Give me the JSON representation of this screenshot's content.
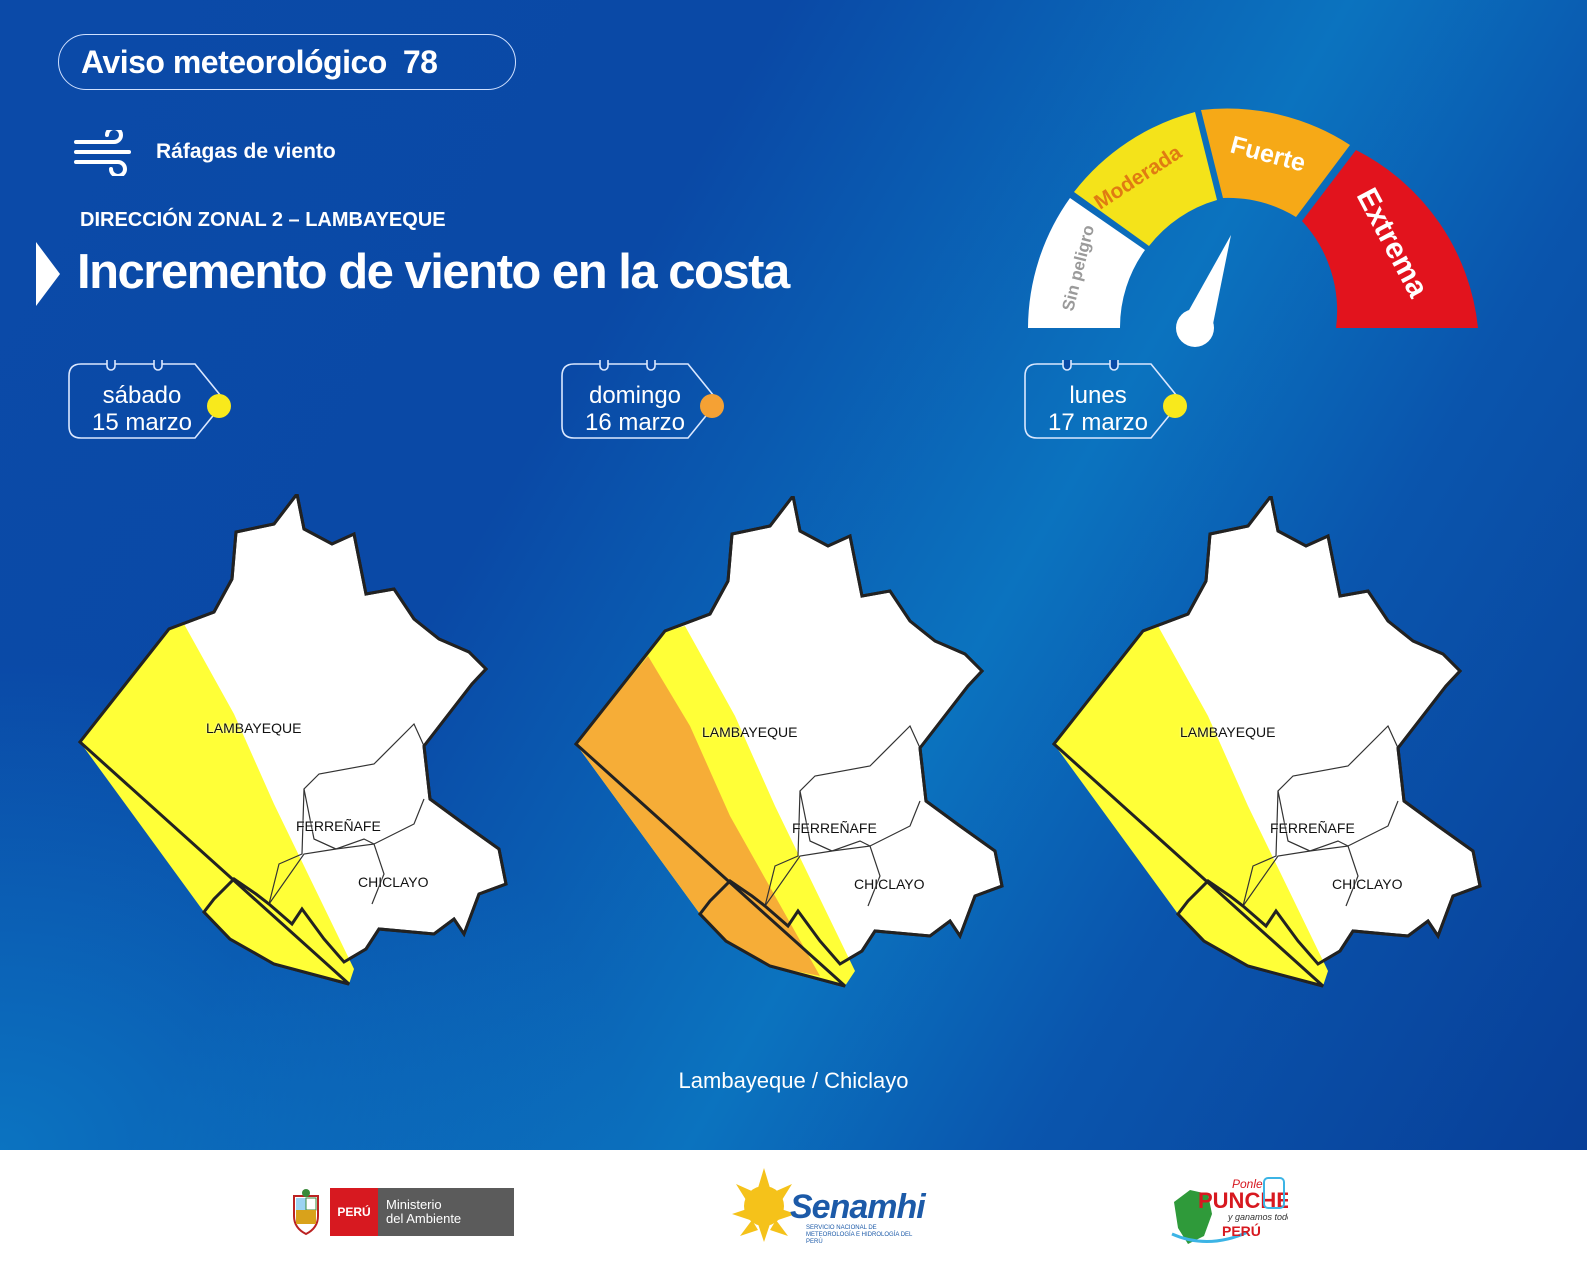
{
  "header": {
    "badge_title": "Aviso meteorológico",
    "badge_number": "78",
    "hazard": "Ráfagas de viento",
    "zone": "DIRECCIÓN ZONAL 2 – LAMBAYEQUE",
    "headline": "Incremento de viento en la costa"
  },
  "gauge": {
    "levels": [
      {
        "label": "Sin peligro",
        "color": "#ffffff",
        "text_color": "#9a9a9a"
      },
      {
        "label": "Moderada",
        "color": "#f4e31a",
        "text_color": "#e07b12"
      },
      {
        "label": "Fuerte",
        "color": "#f6a917",
        "text_color": "#ffffff"
      },
      {
        "label": "Extrema",
        "color": "#e2131d",
        "text_color": "#ffffff"
      }
    ],
    "needle_level": "Fuerte"
  },
  "days": [
    {
      "day": "sábado",
      "date": "15 marzo",
      "level_color": "#f8e91c"
    },
    {
      "day": "domingo",
      "date": "16 marzo",
      "level_color": "#f5a134"
    },
    {
      "day": "lunes",
      "date": "17 marzo",
      "level_color": "#f8e91c"
    }
  ],
  "maps": [
    {
      "provinces": [
        "LAMBAYEQUE",
        "FERREÑAFE",
        "CHICLAYO"
      ],
      "zones": [
        "Moderada"
      ]
    },
    {
      "provinces": [
        "LAMBAYEQUE",
        "FERREÑAFE",
        "CHICLAYO"
      ],
      "zones": [
        "Fuerte",
        "Moderada"
      ]
    },
    {
      "provinces": [
        "LAMBAYEQUE",
        "FERREÑAFE",
        "CHICLAYO"
      ],
      "zones": [
        "Moderada"
      ]
    }
  ],
  "region_caption": "Lambayeque / Chiclayo",
  "footer": {
    "peru_label": "PERÚ",
    "ministry_line1": "Ministerio",
    "ministry_line2": "del Ambiente",
    "senamhi": "Senamhi",
    "senamhi_sub": "SERVICIO NACIONAL DE METEOROLOGÍA E HIDROLOGÍA DEL PERÚ",
    "ponle_logo": "Ponle PUNCHE y ganamos todos PERÚ"
  }
}
